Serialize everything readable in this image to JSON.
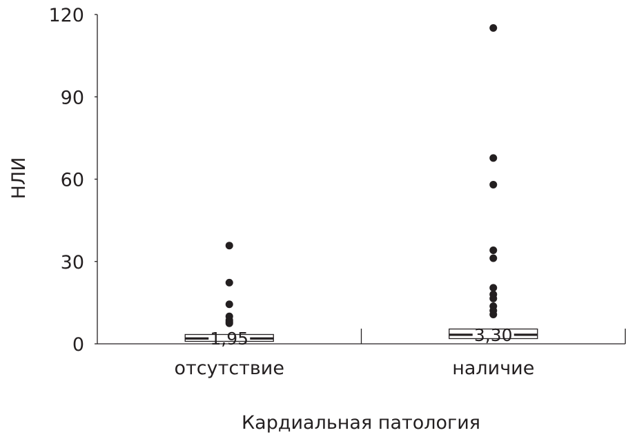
{
  "chart_data": {
    "type": "boxplot",
    "xlabel": "Кардиальная патология",
    "ylabel": "НЛИ",
    "ylim": [
      0,
      120
    ],
    "yticks": [
      0,
      30,
      60,
      90,
      120
    ],
    "grid": false,
    "colors": {
      "ink": "#231f20",
      "box_fill": "#ffffff"
    },
    "groups": [
      {
        "category": "отсутствие",
        "median": 1.95,
        "median_label": "1,95",
        "q1": 0.9,
        "q3": 3.4,
        "outliers": [
          35.8,
          22.3,
          14.4,
          10,
          8.6,
          8,
          7.5
        ]
      },
      {
        "category": "наличие",
        "median": 3.3,
        "median_label": "3,30",
        "q1": 1.9,
        "q3": 5.4,
        "outliers": [
          115.1,
          67.7,
          58,
          34.1,
          31.2,
          20.4,
          18,
          16.5,
          13.7,
          12.1,
          10.7
        ]
      }
    ]
  }
}
